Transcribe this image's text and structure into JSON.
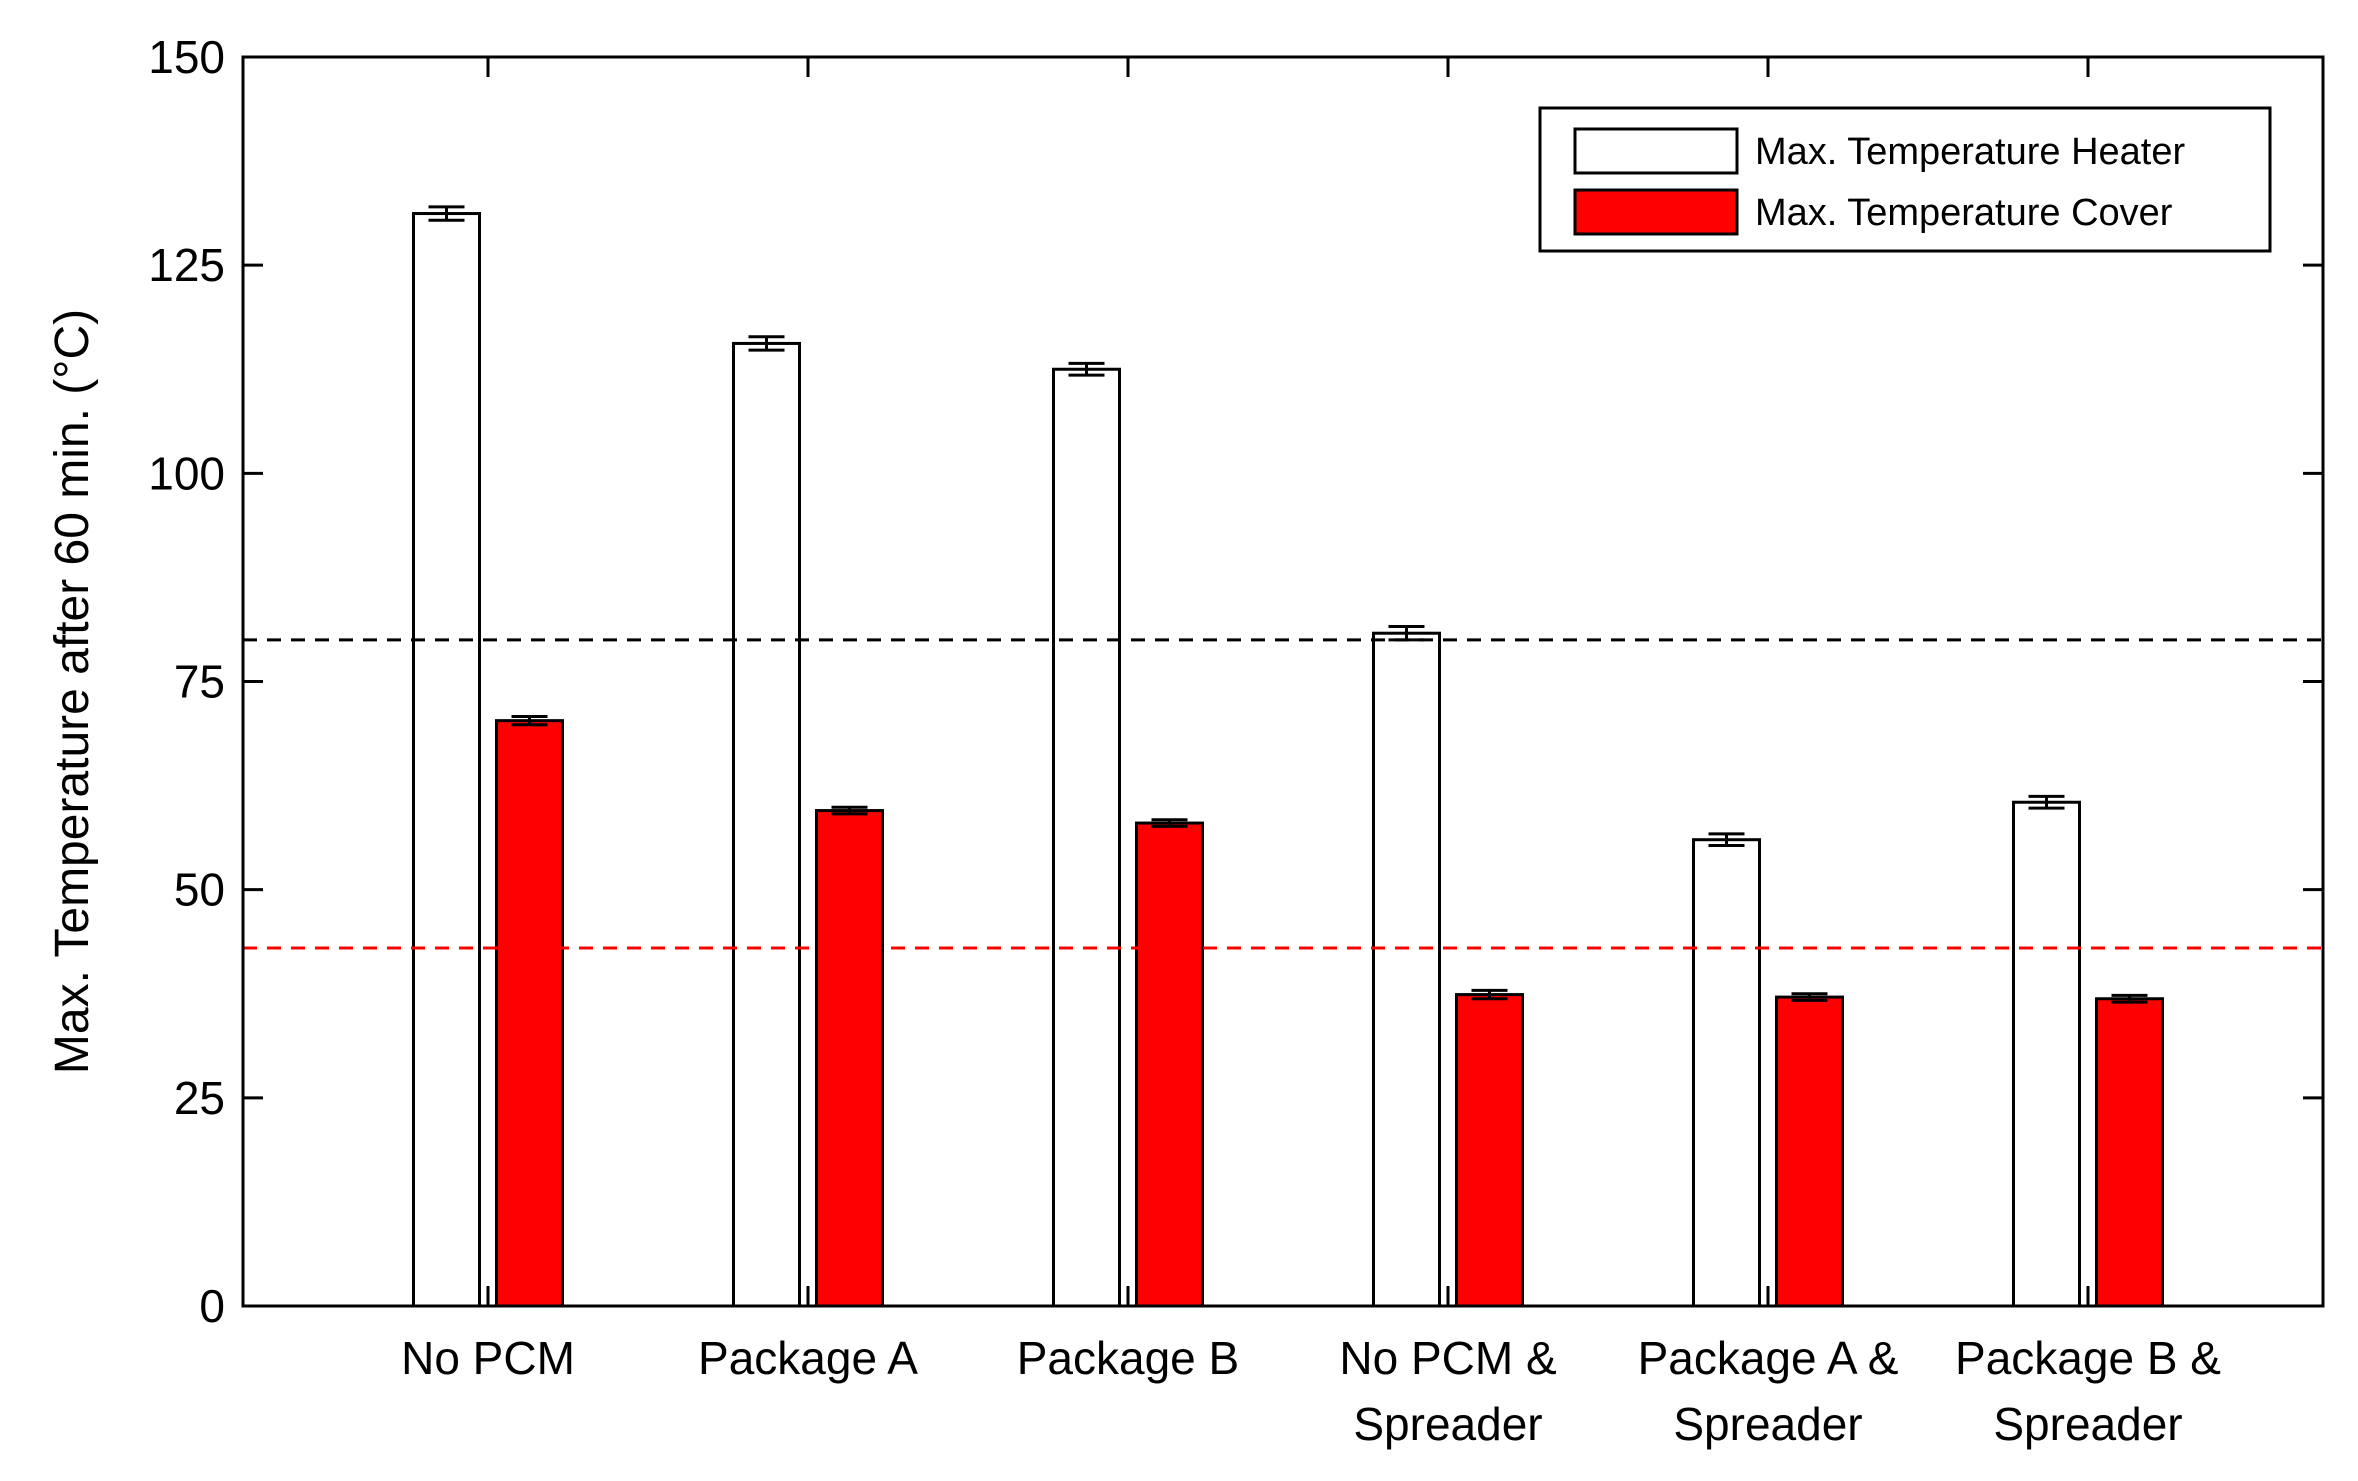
{
  "chart_data": {
    "type": "bar",
    "title": "",
    "xlabel": "",
    "ylabel": "Max. Temperature after 60 min. (°C)",
    "ylim": [
      0,
      150
    ],
    "yticks": [
      0,
      25,
      50,
      75,
      100,
      125,
      150
    ],
    "grid": false,
    "legend_position": "top-right",
    "categories": [
      [
        "No PCM"
      ],
      [
        "Package A"
      ],
      [
        "Package B"
      ],
      [
        "No PCM &",
        "Spreader"
      ],
      [
        "Package A &",
        "Spreader"
      ],
      [
        "Package B &",
        "Spreader"
      ]
    ],
    "series": [
      {
        "name": "Max. Temperature Heater",
        "color": "#ffffff",
        "values": [
          131.2,
          115.6,
          112.5,
          80.8,
          56.0,
          60.5
        ],
        "errors": [
          0.8,
          0.8,
          0.7,
          0.8,
          0.7,
          0.7
        ]
      },
      {
        "name": "Max. Temperature Cover",
        "color": "#ff0000",
        "values": [
          70.3,
          59.5,
          58.0,
          37.4,
          37.1,
          36.9
        ],
        "errors": [
          0.5,
          0.4,
          0.4,
          0.5,
          0.4,
          0.4
        ]
      }
    ],
    "reference_lines": [
      {
        "name": "heater-limit",
        "y": 80,
        "color": "#000000",
        "style": "dashed"
      },
      {
        "name": "cover-limit",
        "y": 43,
        "color": "#ff0000",
        "style": "dashed"
      }
    ]
  }
}
